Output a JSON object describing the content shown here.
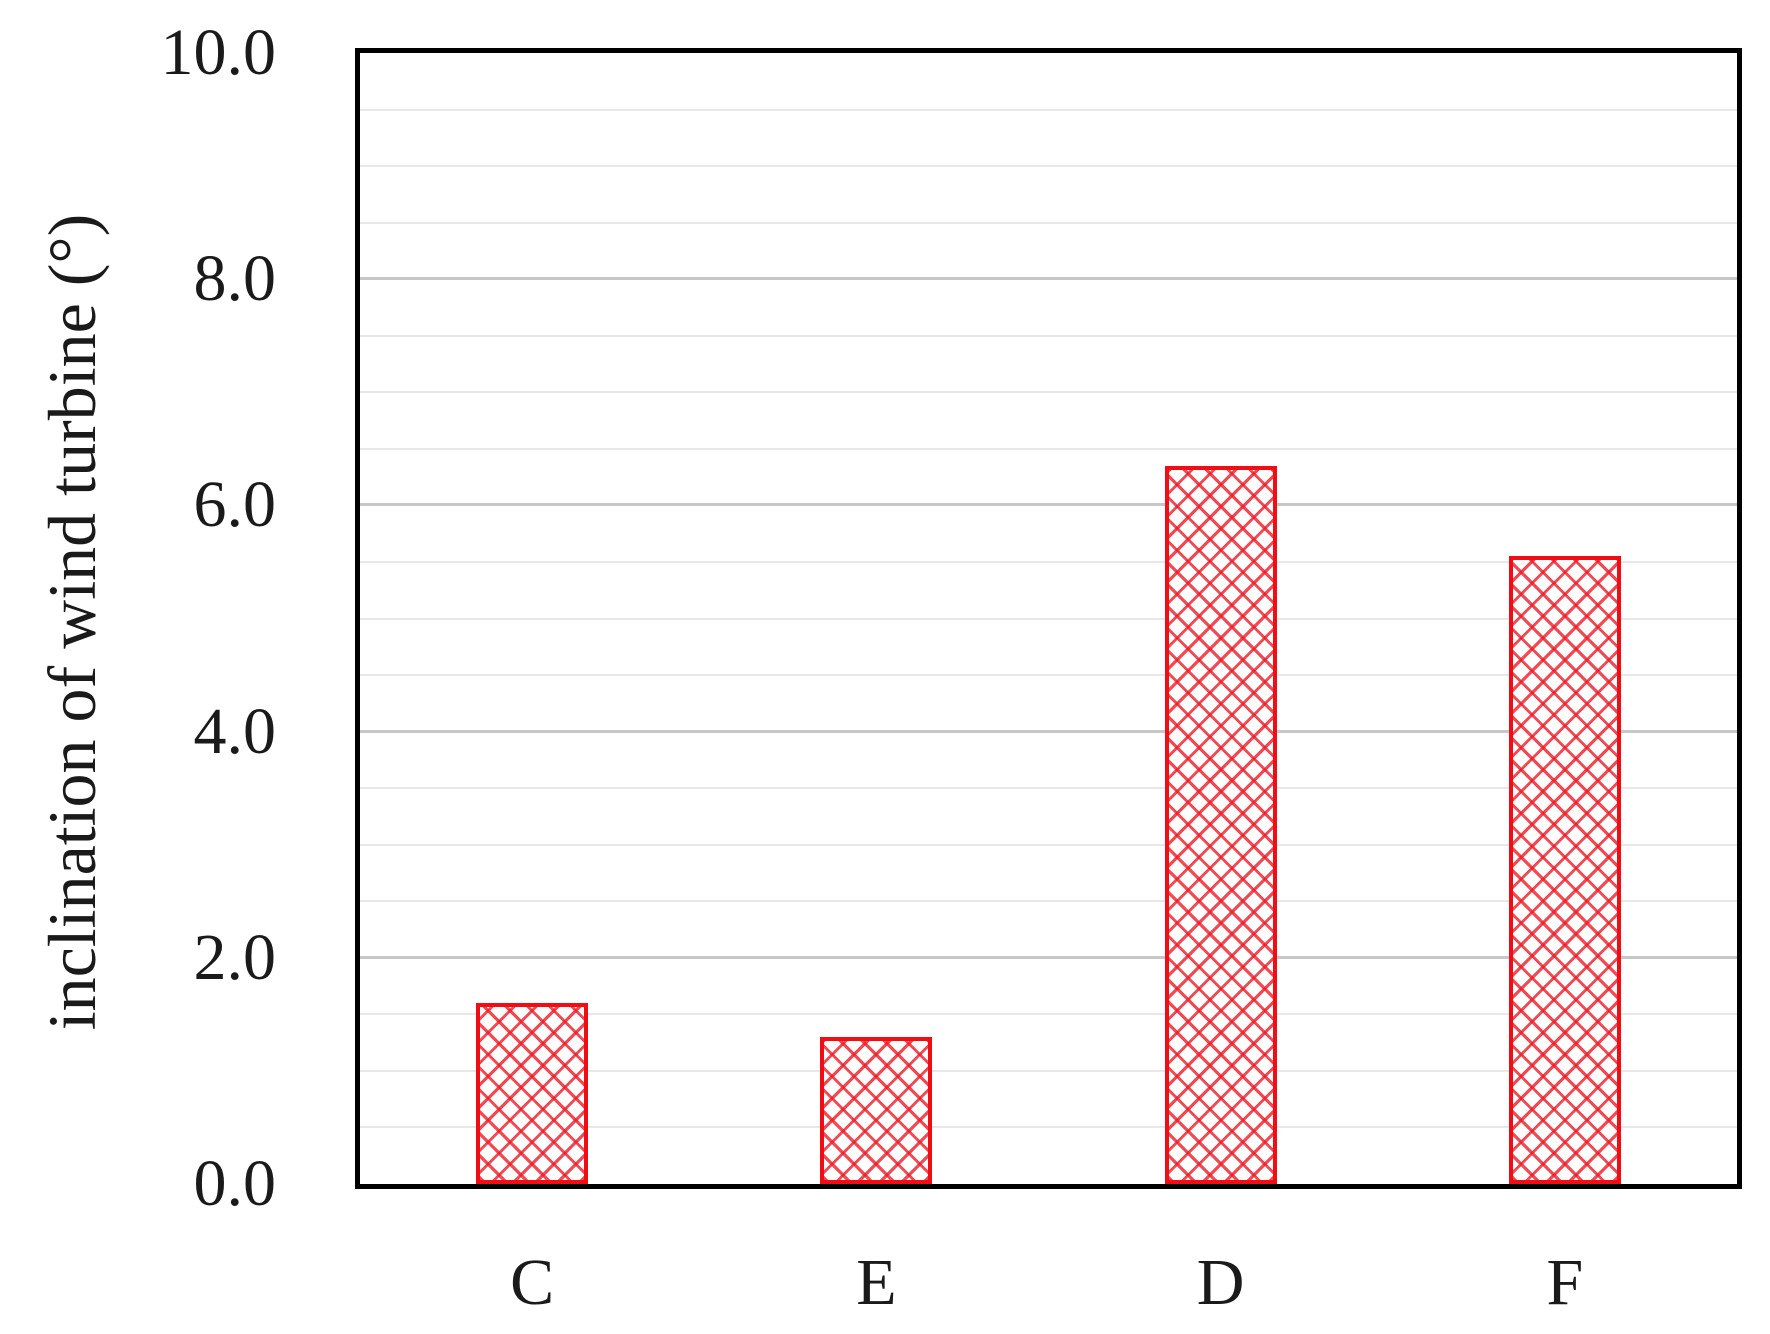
{
  "figure": {
    "background": "#ffffff"
  },
  "chart_data": {
    "type": "bar",
    "title": "",
    "xlabel": "",
    "ylabel": "inclination of wind turbine (°)",
    "categories": [
      "C",
      "E",
      "D",
      "F"
    ],
    "values": [
      1.6,
      1.3,
      6.35,
      5.55
    ],
    "ylim": [
      0,
      10
    ],
    "yticks": [
      0,
      2,
      4,
      6,
      8,
      10
    ],
    "ytick_labels": [
      "0.0",
      "2.0",
      "4.0",
      "6.0",
      "8.0",
      "10.0"
    ],
    "minor_grid_step": 0.5,
    "grid": "horizontal, minor every 0.5 (light) and major every 2.0 (darker)",
    "legend": "none",
    "bar_hatch_style": "diagonal-crosshatch",
    "colors": {
      "bar_fill": "#ffffff",
      "bar_hatch": "#ee1c28",
      "bar_border": "#f20d14",
      "axis_frame": "#000000",
      "major_gridline": "#c7c7c7",
      "minor_gridline": "#e8e8e8",
      "text": "#1a1a1a"
    }
  }
}
